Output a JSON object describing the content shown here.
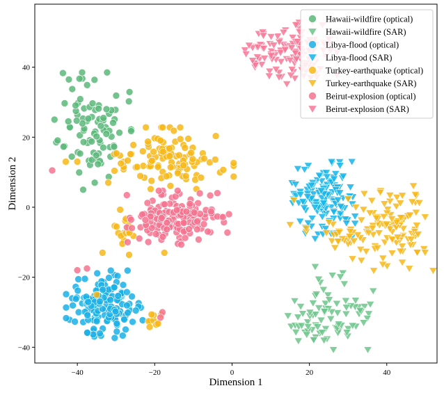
{
  "chart_data": {
    "type": "scatter",
    "title": "",
    "xlabel": "Dimension 1",
    "ylabel": "Dimension 2",
    "xlim": [
      -51,
      53
    ],
    "ylim": [
      -44.5,
      58
    ],
    "xticks": [
      -40,
      -20,
      0,
      20,
      40
    ],
    "yticks": [
      -40,
      -20,
      0,
      20,
      40
    ],
    "grid": false,
    "legend_position": "top-right",
    "series": [
      {
        "name": "Hawaii-wildfire (optical)",
        "color": "#5cb87a",
        "marker": "circle",
        "clusters": [
          {
            "cx": -36,
            "cy": 22,
            "sx": 4.5,
            "sy": 7.5,
            "n": 90,
            "seed": 11
          }
        ]
      },
      {
        "name": "Hawaii-wildfire (SAR)",
        "color": "#6cc48a",
        "marker": "triangle-down",
        "clusters": [
          {
            "cx": 23,
            "cy": -33,
            "sx": 5.5,
            "sy": 3.5,
            "n": 60,
            "seed": 12
          },
          {
            "cx": 33,
            "cy": -28,
            "sx": 2.0,
            "sy": 3.0,
            "n": 15,
            "seed": 13
          },
          {
            "cx": 25,
            "cy": -22,
            "sx": 2.5,
            "sy": 3.0,
            "n": 10,
            "seed": 14
          }
        ]
      },
      {
        "name": "Libya-flood (optical)",
        "color": "#1ab0e8",
        "marker": "circle",
        "clusters": [
          {
            "cx": -33,
            "cy": -28,
            "sx": 4.5,
            "sy": 4.5,
            "n": 150,
            "seed": 21
          }
        ]
      },
      {
        "name": "Libya-flood (SAR)",
        "color": "#14b5ea",
        "marker": "triangle-down",
        "clusters": [
          {
            "cx": 23,
            "cy": 2,
            "sx": 4.0,
            "sy": 5.0,
            "n": 130,
            "seed": 22
          }
        ]
      },
      {
        "name": "Turkey-earthquake (optical)",
        "color": "#f7b718",
        "marker": "circle",
        "clusters": [
          {
            "cx": -15,
            "cy": 14,
            "sx": 7.0,
            "sy": 4.0,
            "n": 110,
            "seed": 31
          },
          {
            "cx": -28,
            "cy": -7,
            "sx": 1.5,
            "sy": 3.0,
            "n": 18,
            "seed": 32
          },
          {
            "cx": -20,
            "cy": -32,
            "sx": 1.0,
            "sy": 1.5,
            "n": 10,
            "seed": 33
          }
        ]
      },
      {
        "name": "Turkey-earthquake (SAR)",
        "color": "#f7b718",
        "marker": "triangle-down",
        "clusters": [
          {
            "cx": 41,
            "cy": -6,
            "sx": 5.0,
            "sy": 5.5,
            "n": 110,
            "seed": 41
          },
          {
            "cx": 28,
            "cy": -8,
            "sx": 4.0,
            "sy": 2.0,
            "n": 20,
            "seed": 42
          }
        ]
      },
      {
        "name": "Beirut-explosion (optical)",
        "color": "#f5738f",
        "marker": "circle",
        "clusters": [
          {
            "cx": -14,
            "cy": -3,
            "sx": 6.0,
            "sy": 3.5,
            "n": 160,
            "seed": 51
          }
        ]
      },
      {
        "name": "Beirut-explosion (SAR)",
        "color": "#f77896",
        "marker": "triangle-down",
        "clusters": [
          {
            "cx": 15,
            "cy": 44,
            "sx": 5.5,
            "sy": 4.0,
            "n": 130,
            "seed": 61
          }
        ]
      }
    ],
    "outliers": [
      {
        "series": 6,
        "x": -46.5,
        "y": 10.5
      },
      {
        "series": 6,
        "x": -40,
        "y": -18
      },
      {
        "series": 6,
        "x": -37.5,
        "y": -17.5
      },
      {
        "series": 6,
        "x": -18,
        "y": -30
      },
      {
        "series": 6,
        "x": -18.5,
        "y": -31.5
      },
      {
        "series": 6,
        "x": -27,
        "y": -10
      },
      {
        "series": 4,
        "x": -43,
        "y": 13
      },
      {
        "series": 4,
        "x": -40,
        "y": 13
      },
      {
        "series": 4,
        "x": -17.5,
        "y": -13
      },
      {
        "series": 4,
        "x": -33.5,
        "y": -13
      },
      {
        "series": 4,
        "x": -35,
        "y": -25
      },
      {
        "series": 4,
        "x": -32,
        "y": 7
      },
      {
        "series": 1,
        "x": 21.5,
        "y": -17
      },
      {
        "series": 0,
        "x": -35.5,
        "y": 7
      },
      {
        "series": 0,
        "x": -38.5,
        "y": 5
      },
      {
        "series": 3,
        "x": 17,
        "y": 11
      },
      {
        "series": 5,
        "x": 16,
        "y": 2
      },
      {
        "series": 5,
        "x": 15,
        "y": -5
      },
      {
        "series": 5,
        "x": 32,
        "y": 0
      }
    ]
  }
}
